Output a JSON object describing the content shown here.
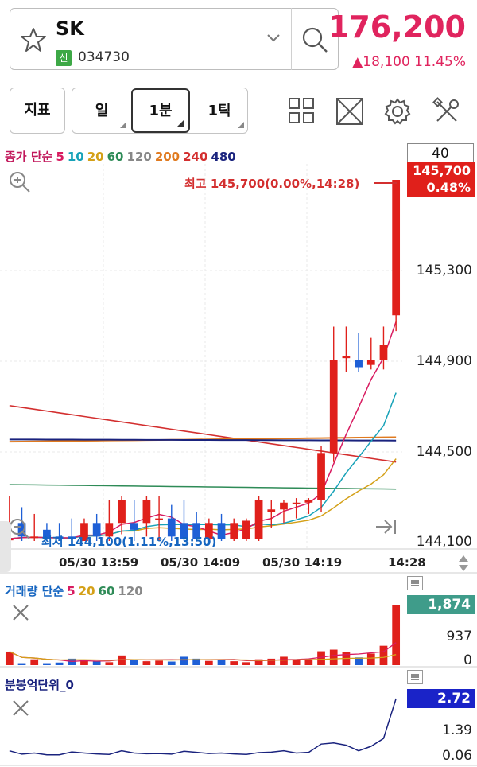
{
  "stock": {
    "name": "SK",
    "badge": "신",
    "code": "034730",
    "price": "176,200",
    "change": "▲18,100  11.45%"
  },
  "toolbar": {
    "indicator_label": "지표",
    "periods": [
      "일",
      "1분",
      "1틱"
    ],
    "selected_period": "1분"
  },
  "price_chart": {
    "legend": [
      {
        "text": "종가 단순",
        "color": "#c2185b"
      },
      {
        "text": "5",
        "color": "#d81b60"
      },
      {
        "text": "10",
        "color": "#17a2b8"
      },
      {
        "text": "20",
        "color": "#d4a017"
      },
      {
        "text": "60",
        "color": "#2e8b57"
      },
      {
        "text": "120",
        "color": "#888888"
      },
      {
        "text": "200",
        "color": "#e07a1f"
      },
      {
        "text": "240",
        "color": "#d32f2f"
      },
      {
        "text": "480",
        "color": "#1a237e"
      }
    ],
    "count_box": "40",
    "high_label": "최고 145,700(0.00%,14:28)",
    "low_label": "최저 144,100(1.11%,13:50)",
    "current_price": "145,700",
    "current_pct": "0.48%",
    "y_ticks": [
      "145,300",
      "144,900",
      "144,500",
      "144,100"
    ],
    "x_ticks": [
      "05/30 13:59",
      "05/30 14:09",
      "05/30 14:19",
      "14:28"
    ]
  },
  "volume_chart": {
    "legend": [
      {
        "text": "거래량 단순",
        "color": "#1565c0"
      },
      {
        "text": "5",
        "color": "#d81b60"
      },
      {
        "text": "20",
        "color": "#d4a017"
      },
      {
        "text": "60",
        "color": "#2e8b57"
      },
      {
        "text": "120",
        "color": "#888888"
      }
    ],
    "current": "1,874",
    "y_ticks": [
      "937",
      "0"
    ]
  },
  "amount_chart": {
    "legend": "분봉억단위_0",
    "current": "2.72",
    "y_ticks": [
      "1.39",
      "0.06"
    ]
  },
  "chart_data": {
    "type": "candlestick",
    "ylim": [
      144100,
      145700
    ],
    "candles": [
      {
        "o": 144110,
        "h": 144300,
        "l": 144100,
        "c": 144110
      },
      {
        "o": 144180,
        "h": 144250,
        "l": 144100,
        "c": 144120
      },
      {
        "o": 144120,
        "h": 144220,
        "l": 144100,
        "c": 144120
      },
      {
        "o": 144150,
        "h": 144180,
        "l": 144100,
        "c": 144110
      },
      {
        "o": 144120,
        "h": 144180,
        "l": 144100,
        "c": 144110
      },
      {
        "o": 144120,
        "h": 144200,
        "l": 144100,
        "c": 144110
      },
      {
        "o": 144100,
        "h": 144200,
        "l": 144100,
        "c": 144180
      },
      {
        "o": 144180,
        "h": 144220,
        "l": 144100,
        "c": 144120
      },
      {
        "o": 144120,
        "h": 144280,
        "l": 144100,
        "c": 144180
      },
      {
        "o": 144180,
        "h": 144300,
        "l": 144130,
        "c": 144280
      },
      {
        "o": 144180,
        "h": 144280,
        "l": 144100,
        "c": 144150
      },
      {
        "o": 144180,
        "h": 144300,
        "l": 144120,
        "c": 144280
      },
      {
        "o": 144200,
        "h": 144300,
        "l": 144100,
        "c": 144200
      },
      {
        "o": 144200,
        "h": 144260,
        "l": 144100,
        "c": 144120
      },
      {
        "o": 144180,
        "h": 144280,
        "l": 144100,
        "c": 144110
      },
      {
        "o": 144180,
        "h": 144230,
        "l": 144100,
        "c": 144110
      },
      {
        "o": 144110,
        "h": 144200,
        "l": 144100,
        "c": 144180
      },
      {
        "o": 144180,
        "h": 144220,
        "l": 144100,
        "c": 144110
      },
      {
        "o": 144110,
        "h": 144200,
        "l": 144100,
        "c": 144180
      },
      {
        "o": 144110,
        "h": 144200,
        "l": 144100,
        "c": 144190
      },
      {
        "o": 144110,
        "h": 144300,
        "l": 144100,
        "c": 144280
      },
      {
        "o": 144230,
        "h": 144280,
        "l": 144160,
        "c": 144240
      },
      {
        "o": 144240,
        "h": 144280,
        "l": 144180,
        "c": 144270
      },
      {
        "o": 144270,
        "h": 144290,
        "l": 144200,
        "c": 144270
      },
      {
        "o": 144270,
        "h": 144290,
        "l": 144220,
        "c": 144280
      },
      {
        "o": 144280,
        "h": 144520,
        "l": 144230,
        "c": 144490
      },
      {
        "o": 144490,
        "h": 145050,
        "l": 144450,
        "c": 144900
      },
      {
        "o": 144910,
        "h": 145050,
        "l": 144850,
        "c": 144920
      },
      {
        "o": 144900,
        "h": 145020,
        "l": 144850,
        "c": 144870
      },
      {
        "o": 144880,
        "h": 145000,
        "l": 144860,
        "c": 144900
      },
      {
        "o": 144900,
        "h": 145050,
        "l": 144860,
        "c": 144970
      },
      {
        "o": 145100,
        "h": 145700,
        "l": 145030,
        "c": 145700
      }
    ],
    "volume": [
      420,
      60,
      180,
      60,
      80,
      200,
      160,
      120,
      90,
      300,
      180,
      120,
      140,
      110,
      260,
      200,
      130,
      160,
      120,
      90,
      180,
      200,
      260,
      150,
      180,
      430,
      480,
      400,
      240,
      360,
      600,
      1874
    ],
    "amount": [
      0.4,
      0.25,
      0.3,
      0.22,
      0.22,
      0.35,
      0.3,
      0.26,
      0.24,
      0.4,
      0.3,
      0.27,
      0.28,
      0.25,
      0.38,
      0.33,
      0.28,
      0.3,
      0.26,
      0.24,
      0.32,
      0.34,
      0.4,
      0.3,
      0.33,
      0.7,
      0.75,
      0.65,
      0.4,
      0.6,
      0.95,
      2.72
    ]
  }
}
